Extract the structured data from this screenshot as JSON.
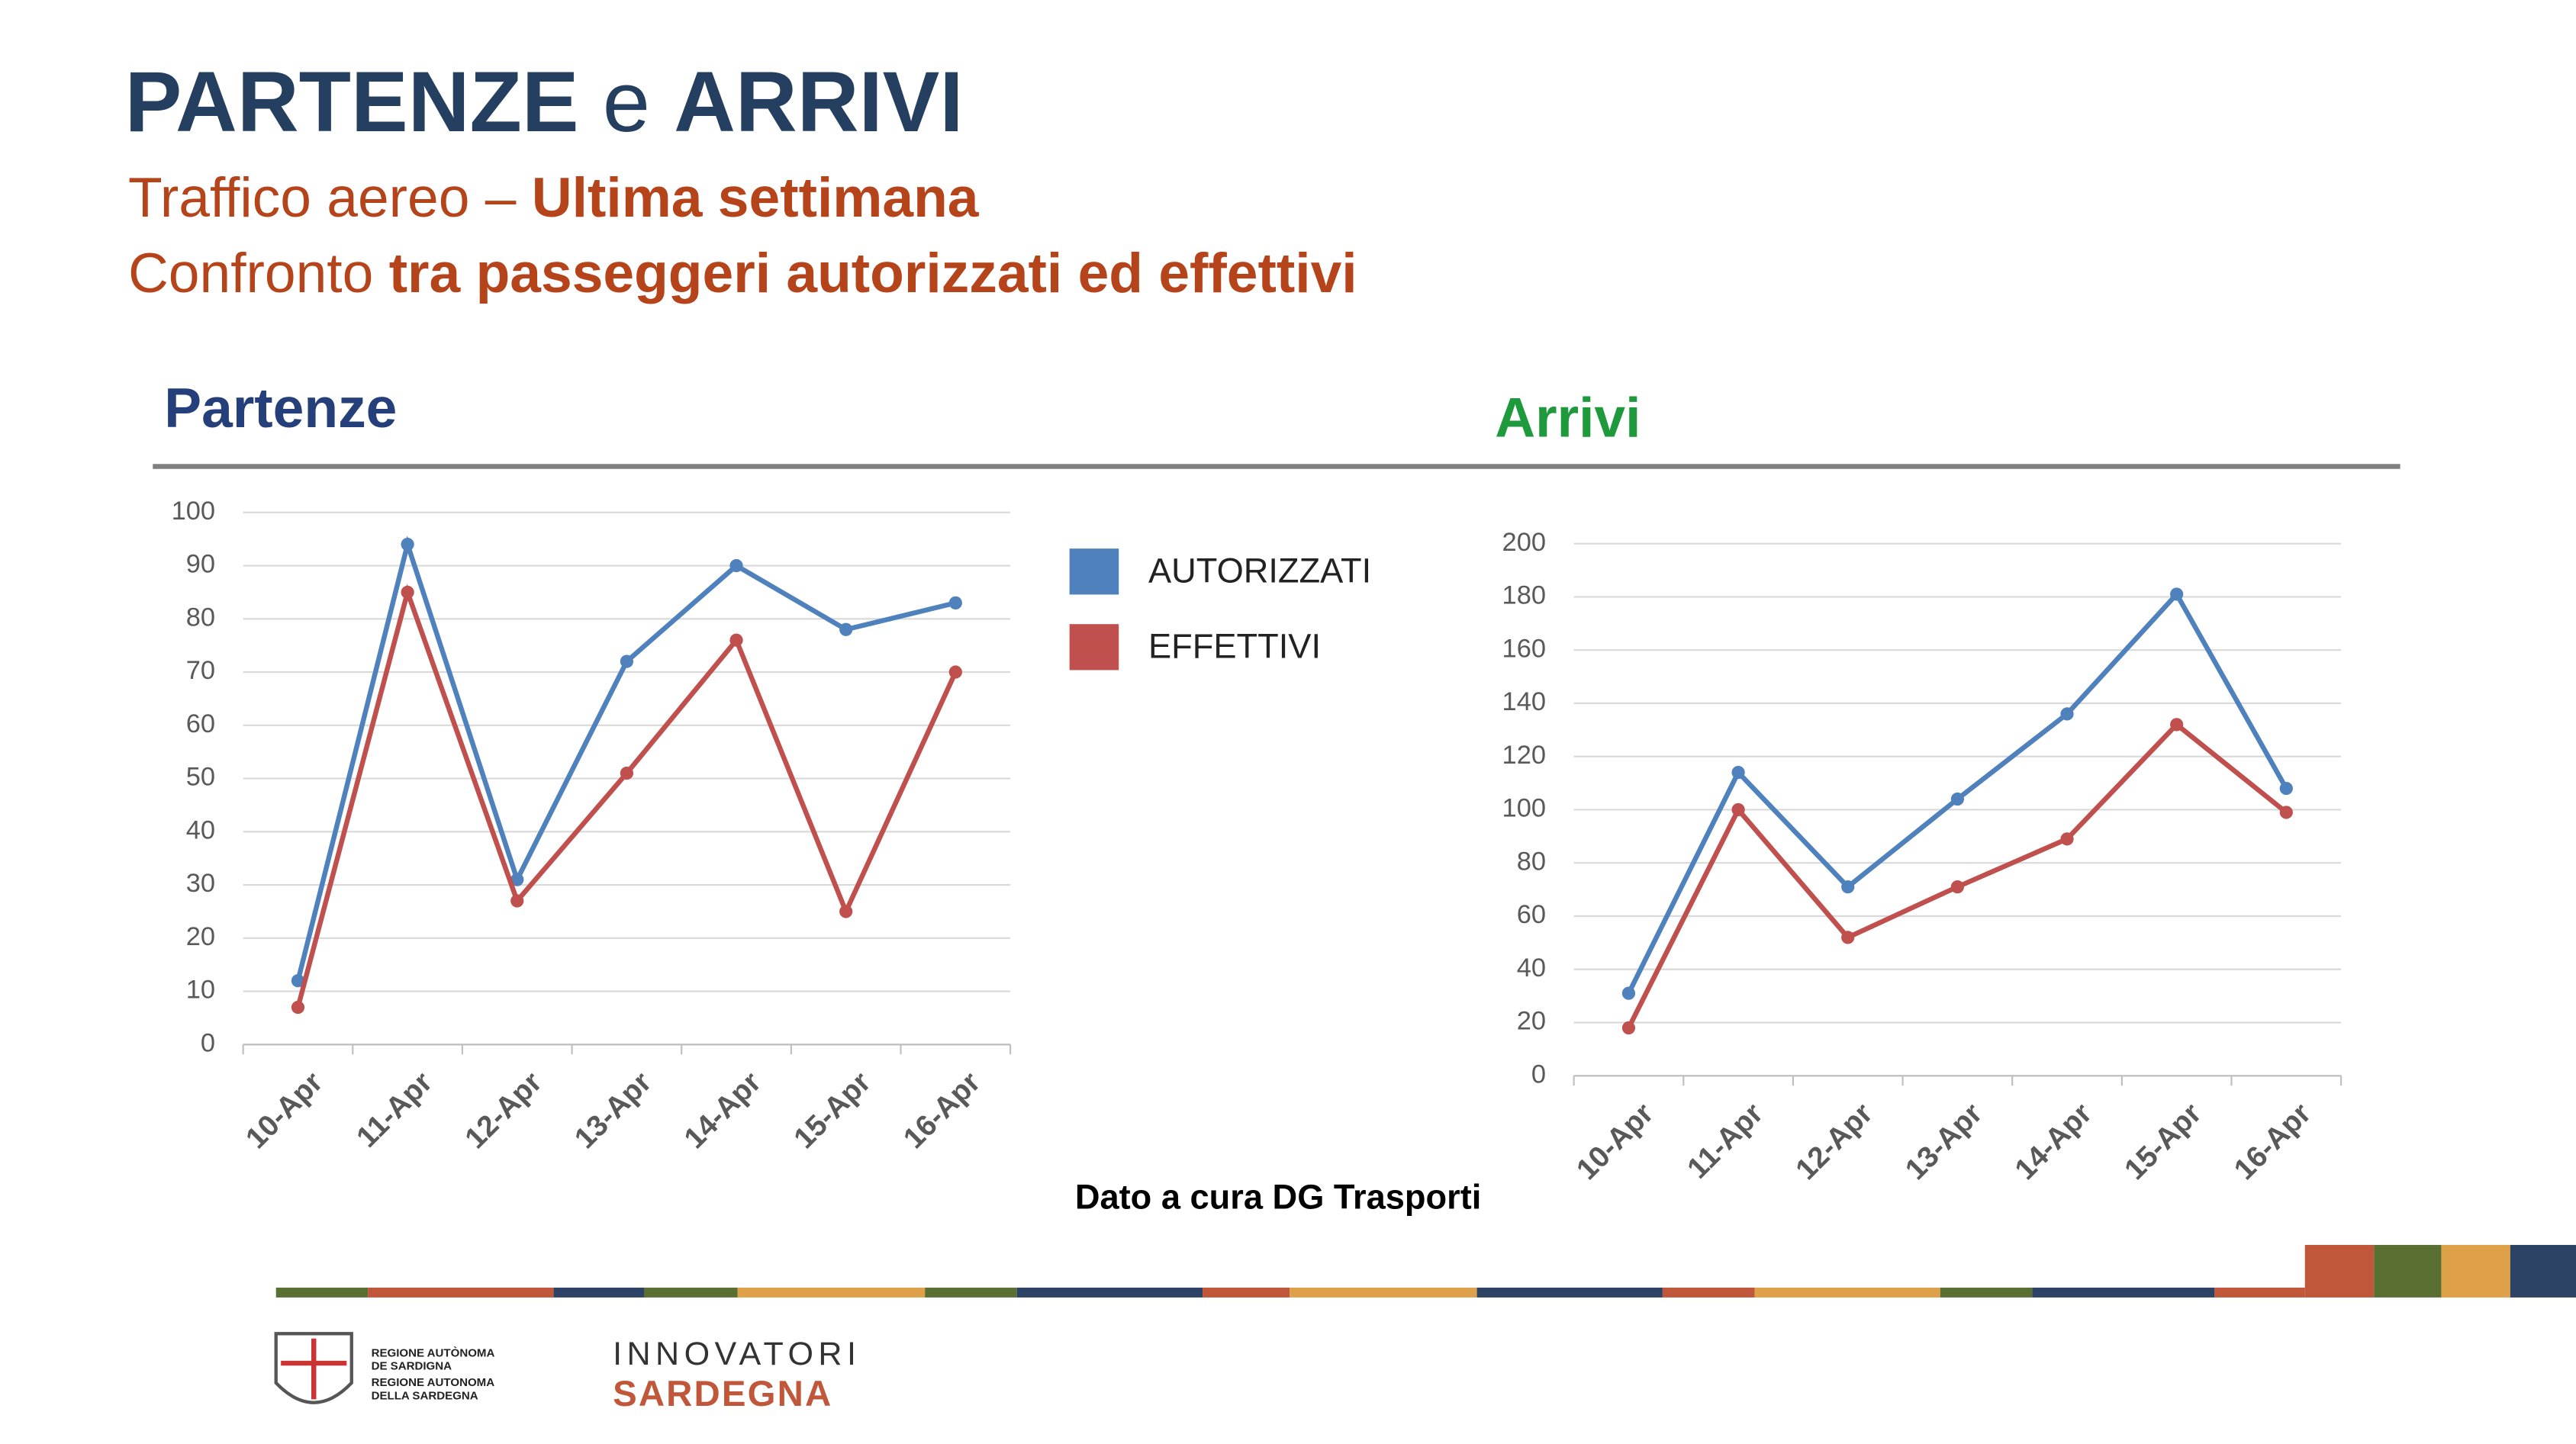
{
  "header": {
    "title_a": "PARTENZE",
    "title_b": "e",
    "title_c": "ARRIVI",
    "line1_a": "Traffico aereo – ",
    "line1_b": "Ultima settimana",
    "line2_a": "Confronto ",
    "line2_b": "tra passeggeri autorizzati ed effettivi"
  },
  "chart_data": [
    {
      "type": "line",
      "title": "Partenze",
      "categories": [
        "10-Apr",
        "11-Apr",
        "12-Apr",
        "13-Apr",
        "14-Apr",
        "15-Apr",
        "16-Apr"
      ],
      "series": [
        {
          "name": "AUTORIZZATI",
          "color": "#4f81bd",
          "values": [
            12,
            94,
            31,
            72,
            90,
            78,
            83
          ]
        },
        {
          "name": "EFFETTIVI",
          "color": "#c0504d",
          "values": [
            7,
            85,
            27,
            51,
            76,
            25,
            70
          ]
        }
      ],
      "ylim": [
        0,
        100
      ],
      "yticks": [
        0,
        10,
        20,
        30,
        40,
        50,
        60,
        70,
        80,
        90,
        100
      ],
      "grid": true,
      "legend": "right"
    },
    {
      "type": "line",
      "title": "Arrivi",
      "categories": [
        "10-Apr",
        "11-Apr",
        "12-Apr",
        "13-Apr",
        "14-Apr",
        "15-Apr",
        "16-Apr"
      ],
      "series": [
        {
          "name": "AUTORIZZATI",
          "color": "#4f81bd",
          "values": [
            31,
            114,
            71,
            104,
            136,
            181,
            108
          ]
        },
        {
          "name": "EFFETTIVI",
          "color": "#c0504d",
          "values": [
            18,
            100,
            52,
            71,
            89,
            132,
            99
          ]
        }
      ],
      "ylim": [
        0,
        200
      ],
      "yticks": [
        0,
        20,
        40,
        60,
        80,
        100,
        120,
        140,
        160,
        180,
        200
      ],
      "grid": true
    }
  ],
  "footer": {
    "source": "Dato a cura DG Trasporti",
    "logo1_a": "REGIONE AUTÒNOMA",
    "logo1_b": "DE SARDIGNA",
    "logo1_c": "REGIONE AUTONOMA",
    "logo1_d": "DELLA SARDEGNA",
    "logo2_a": "INNOVATORI",
    "logo2_b": "SARDEGNA"
  }
}
